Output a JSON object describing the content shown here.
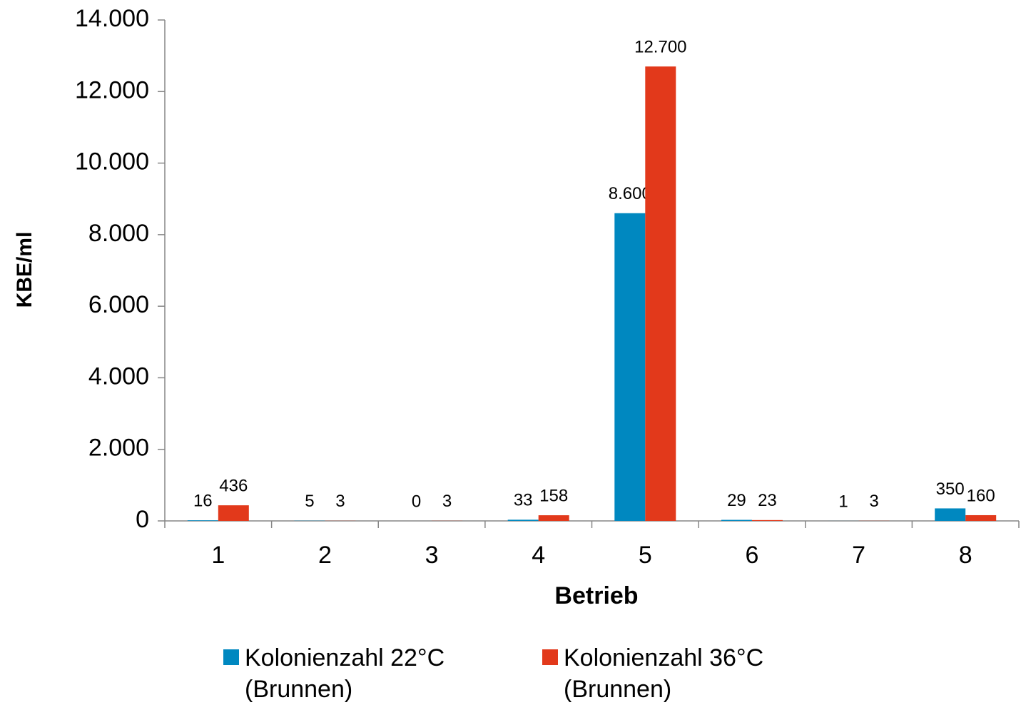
{
  "chart_data": {
    "type": "bar",
    "x_label": "Betrieb",
    "y_label": "KBE/ml",
    "categories": [
      "1",
      "2",
      "3",
      "4",
      "5",
      "6",
      "7",
      "8"
    ],
    "series": [
      {
        "name": "Kolonienzahl 22°C (Brunnen)",
        "color": "#0088c0",
        "values": [
          16,
          5,
          0,
          33,
          8600,
          29,
          1,
          350
        ],
        "value_labels": [
          "16",
          "5",
          "0",
          "33",
          "8.600",
          "29",
          "1",
          "350"
        ]
      },
      {
        "name": "Kolonienzahl 36°C (Brunnen)",
        "color": "#e2391b",
        "values": [
          436,
          3,
          3,
          158,
          12700,
          23,
          3,
          160
        ],
        "value_labels": [
          "436",
          "3",
          "3",
          "158",
          "12.700",
          "23",
          "3",
          "160"
        ]
      }
    ],
    "ylim": [
      0,
      14000
    ],
    "yticks": [
      0,
      {
        "value": 2000,
        "label": "2.000"
      },
      {
        "value": 4000,
        "label": "4.000"
      },
      {
        "value": 6000,
        "label": "6.000"
      },
      {
        "value": 8000,
        "label": "8.000"
      },
      {
        "value": 10000,
        "label": "10.000"
      },
      {
        "value": 12000,
        "label": "12.000"
      },
      {
        "value": 14000,
        "label": "14.000"
      }
    ],
    "grid": false,
    "legend": "bottom"
  }
}
